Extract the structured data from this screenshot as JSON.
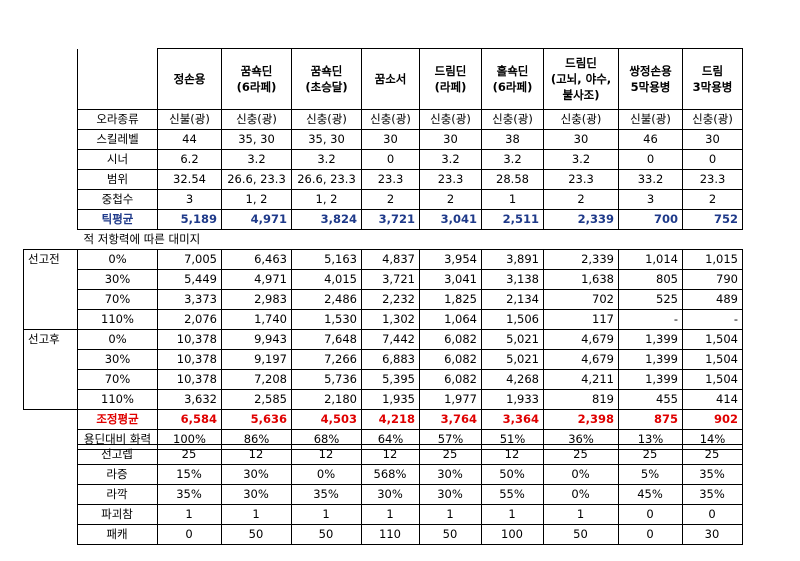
{
  "columns": [
    "정손용",
    "꿈쇽딘\n(6라페)",
    "꿈쇽딘\n(초승달)",
    "꿈소서",
    "드림딘\n(라페)",
    "홀쇽딘\n(6라페)",
    "드림딘\n(고뇌, 야수,\n불사조)",
    "쌍정손용\n5막용병",
    "드림\n3막용병"
  ],
  "info_rows": [
    {
      "label": "오라종류",
      "values": [
        "신불(광)",
        "신충(광)",
        "신충(광)",
        "신충(광)",
        "신충(광)",
        "신충(광)",
        "신충(광)",
        "신불(광)",
        "신충(광)"
      ]
    },
    {
      "label": "스킬레벨",
      "values": [
        "44",
        "35, 30",
        "35, 30",
        "30",
        "30",
        "38",
        "30",
        "46",
        "30"
      ]
    },
    {
      "label": "시너",
      "values": [
        "6.2",
        "3.2",
        "3.2",
        "0",
        "3.2",
        "3.2",
        "3.2",
        "0",
        "0"
      ]
    },
    {
      "label": "범위",
      "values": [
        "32.54",
        "26.6, 23.3",
        "26.6, 23.3",
        "23.3",
        "23.3",
        "28.58",
        "23.3",
        "33.2",
        "23.3"
      ]
    },
    {
      "label": "중첩수",
      "values": [
        "3",
        "1, 2",
        "1, 2",
        "2",
        "2",
        "1",
        "2",
        "3",
        "2"
      ]
    }
  ],
  "tick_avg": {
    "label": "틱평균",
    "values": [
      "5,189",
      "4,971",
      "3,824",
      "3,721",
      "3,041",
      "2,511",
      "2,339",
      "700",
      "752"
    ]
  },
  "note": "적 저항력에 따른 대미지",
  "before": {
    "label": "선고전",
    "rows": [
      {
        "label": "0%",
        "values": [
          "7,005",
          "6,463",
          "5,163",
          "4,837",
          "3,954",
          "3,891",
          "2,339",
          "1,014",
          "1,015"
        ]
      },
      {
        "label": "30%",
        "values": [
          "5,449",
          "4,971",
          "4,015",
          "3,721",
          "3,041",
          "3,138",
          "1,638",
          "805",
          "790"
        ]
      },
      {
        "label": "70%",
        "values": [
          "3,373",
          "2,983",
          "2,486",
          "2,232",
          "1,825",
          "2,134",
          "702",
          "525",
          "489"
        ]
      },
      {
        "label": "110%",
        "values": [
          "2,076",
          "1,740",
          "1,530",
          "1,302",
          "1,064",
          "1,506",
          "117",
          "-",
          "-"
        ]
      }
    ]
  },
  "after": {
    "label": "선고후",
    "rows": [
      {
        "label": "0%",
        "values": [
          "10,378",
          "9,943",
          "7,648",
          "7,442",
          "6,082",
          "5,021",
          "4,679",
          "1,399",
          "1,504"
        ]
      },
      {
        "label": "30%",
        "values": [
          "10,378",
          "9,197",
          "7,266",
          "6,883",
          "6,082",
          "5,021",
          "4,679",
          "1,399",
          "1,504"
        ]
      },
      {
        "label": "70%",
        "values": [
          "10,378",
          "7,208",
          "5,736",
          "5,395",
          "6,082",
          "4,268",
          "4,211",
          "1,399",
          "1,504"
        ]
      },
      {
        "label": "110%",
        "values": [
          "3,632",
          "2,585",
          "2,180",
          "1,935",
          "1,977",
          "1,933",
          "819",
          "455",
          "414"
        ]
      }
    ]
  },
  "adjusted_avg": {
    "label": "조정평균",
    "values": [
      "6,584",
      "5,636",
      "4,503",
      "4,218",
      "3,764",
      "3,364",
      "2,398",
      "875",
      "902"
    ]
  },
  "ratio": {
    "label": "용딘대비 화력",
    "values": [
      "100%",
      "86%",
      "68%",
      "64%",
      "57%",
      "51%",
      "36%",
      "13%",
      "14%"
    ]
  },
  "bottom_rows": [
    {
      "label": "선고렙",
      "values": [
        "25",
        "12",
        "12",
        "12",
        "25",
        "12",
        "25",
        "25",
        "25"
      ]
    },
    {
      "label": "라증",
      "values": [
        "15%",
        "30%",
        "0%",
        "568%",
        "30%",
        "50%",
        "0%",
        "5%",
        "35%"
      ]
    },
    {
      "label": "라깍",
      "values": [
        "35%",
        "30%",
        "35%",
        "30%",
        "30%",
        "55%",
        "0%",
        "45%",
        "35%"
      ]
    },
    {
      "label": "파괴참",
      "values": [
        "1",
        "1",
        "1",
        "1",
        "1",
        "1",
        "1",
        "0",
        "0"
      ]
    },
    {
      "label": "패캐",
      "values": [
        "0",
        "50",
        "50",
        "110",
        "50",
        "100",
        "50",
        "0",
        "30"
      ]
    }
  ]
}
